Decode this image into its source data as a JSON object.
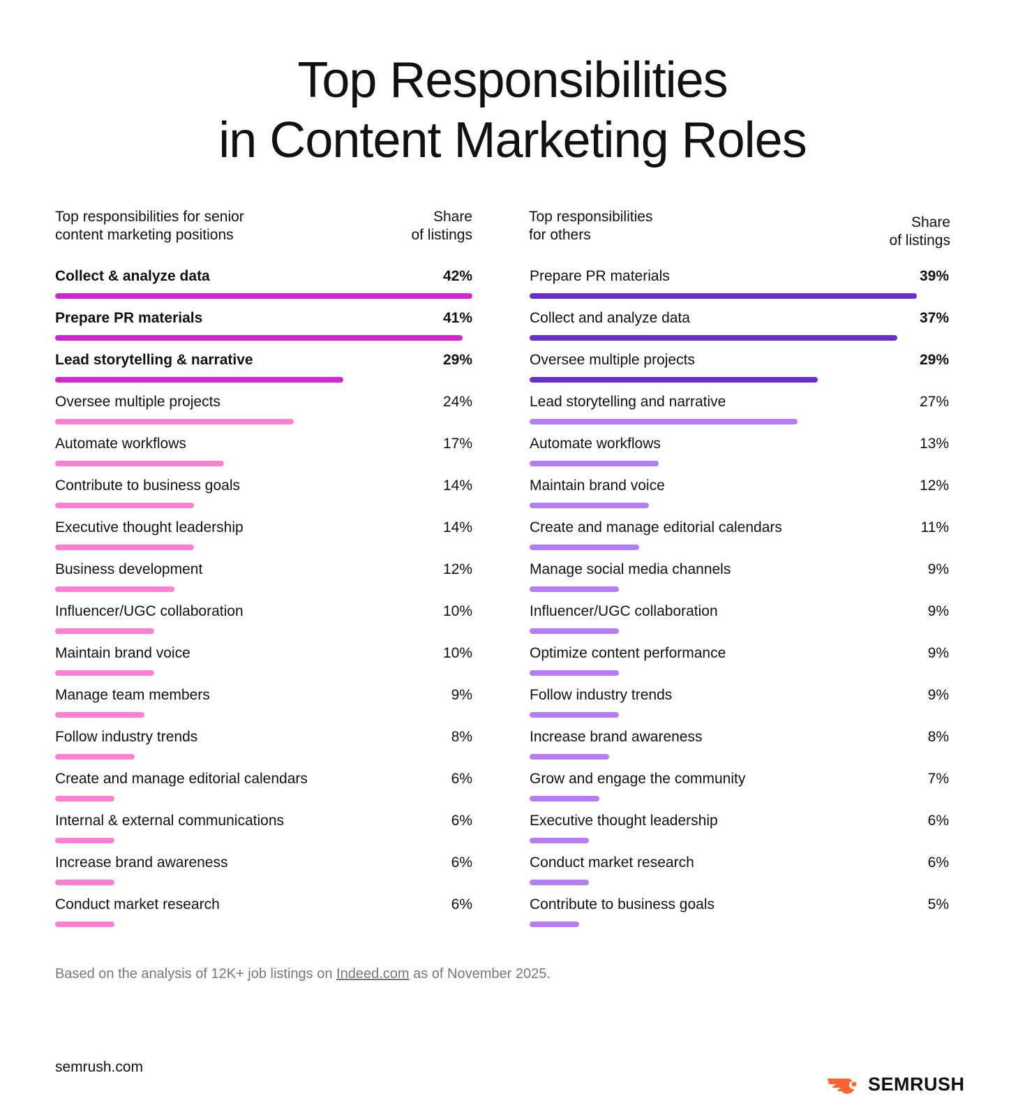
{
  "title_line1": "Top Responsibilities",
  "title_line2": "in Content Marketing Roles",
  "chart_data": [
    {
      "type": "bar",
      "orientation": "horizontal",
      "category_header": "Top responsibilities for senior content marketing positions",
      "value_header": "Share of listings",
      "unit": "%",
      "highlight_color": "#d026d0",
      "base_color": "#ff7fd3",
      "highlight_count": 3,
      "categories": [
        "Collect & analyze data",
        "Prepare PR materials",
        "Lead storytelling & narrative",
        "Oversee multiple projects",
        "Automate workflows",
        "Contribute to business goals",
        "Executive thought leadership",
        "Business development",
        "Influencer/UGC collaboration",
        "Maintain brand voice",
        "Manage team members",
        "Follow industry trends",
        "Create and manage editorial calendars",
        "Internal & external communications",
        "Increase brand awareness",
        "Conduct market research"
      ],
      "values": [
        42,
        41,
        29,
        24,
        17,
        14,
        14,
        12,
        10,
        10,
        9,
        8,
        6,
        6,
        6,
        6
      ],
      "labels": [
        "42%",
        "41%",
        "29%",
        "24%",
        "17%",
        "14%",
        "14%",
        "12%",
        "10%",
        "10%",
        "9%",
        "8%",
        "6%",
        "6%",
        "6%",
        "6%"
      ]
    },
    {
      "type": "bar",
      "orientation": "horizontal",
      "category_header": "Top responsibilities for others",
      "value_header": "Share of listings",
      "unit": "%",
      "highlight_color": "#6b2fcc",
      "base_color": "#b57ef5",
      "highlight_count": 3,
      "categories": [
        "Prepare PR materials",
        "Collect and analyze data",
        "Oversee multiple projects",
        "Lead storytelling and narrative",
        "Automate workflows",
        "Maintain brand voice",
        "Create and manage editorial calendars",
        "Manage social media channels",
        "Influencer/UGC collaboration",
        "Optimize content performance",
        "Follow industry trends",
        "Increase brand awareness",
        "Grow and engage the community",
        "Executive thought leadership",
        "Conduct market research",
        "Contribute to business goals"
      ],
      "values": [
        39,
        37,
        29,
        27,
        13,
        12,
        11,
        9,
        9,
        9,
        9,
        8,
        7,
        6,
        6,
        5
      ],
      "labels": [
        "39%",
        "37%",
        "29%",
        "27%",
        "13%",
        "12%",
        "11%",
        "9%",
        "9%",
        "9%",
        "9%",
        "8%",
        "7%",
        "6%",
        "6%",
        "5%"
      ]
    }
  ],
  "headers": {
    "left_line1": "Top responsibilities for senior",
    "left_line2": "content marketing positions",
    "right_line1": "Top responsibilities",
    "right_line2": "for others",
    "share_line1": "Share",
    "share_line2": "of listings"
  },
  "footnote": {
    "before": "Based on the analysis of 12K+ job listings on ",
    "link": "Indeed.com",
    "after": " as of November 2025."
  },
  "site": "semrush.com",
  "logo_text": "SEMRUSH",
  "logo_color": "#ff642d"
}
